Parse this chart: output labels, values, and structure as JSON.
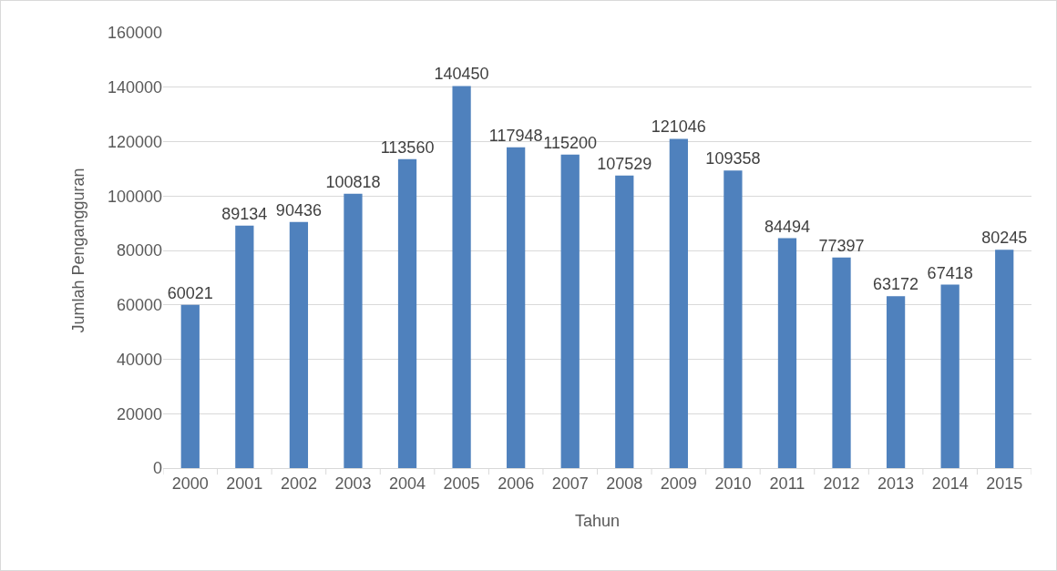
{
  "chart_data": {
    "type": "bar",
    "xlabel": "Tahun",
    "ylabel": "Jumlah Pengangguran",
    "categories": [
      "2000",
      "2001",
      "2002",
      "2003",
      "2004",
      "2005",
      "2006",
      "2007",
      "2008",
      "2009",
      "2010",
      "2011",
      "2012",
      "2013",
      "2014",
      "2015"
    ],
    "values": [
      60021,
      89134,
      90436,
      100818,
      113560,
      140450,
      117948,
      115200,
      107529,
      121046,
      109358,
      84494,
      77397,
      63172,
      67418,
      80245
    ],
    "color": "#4f81bd",
    "ylim": [
      0,
      160000
    ],
    "yticks": [
      0,
      20000,
      40000,
      60000,
      80000,
      100000,
      120000,
      140000,
      160000
    ],
    "grid": "y",
    "data_labels": true
  }
}
